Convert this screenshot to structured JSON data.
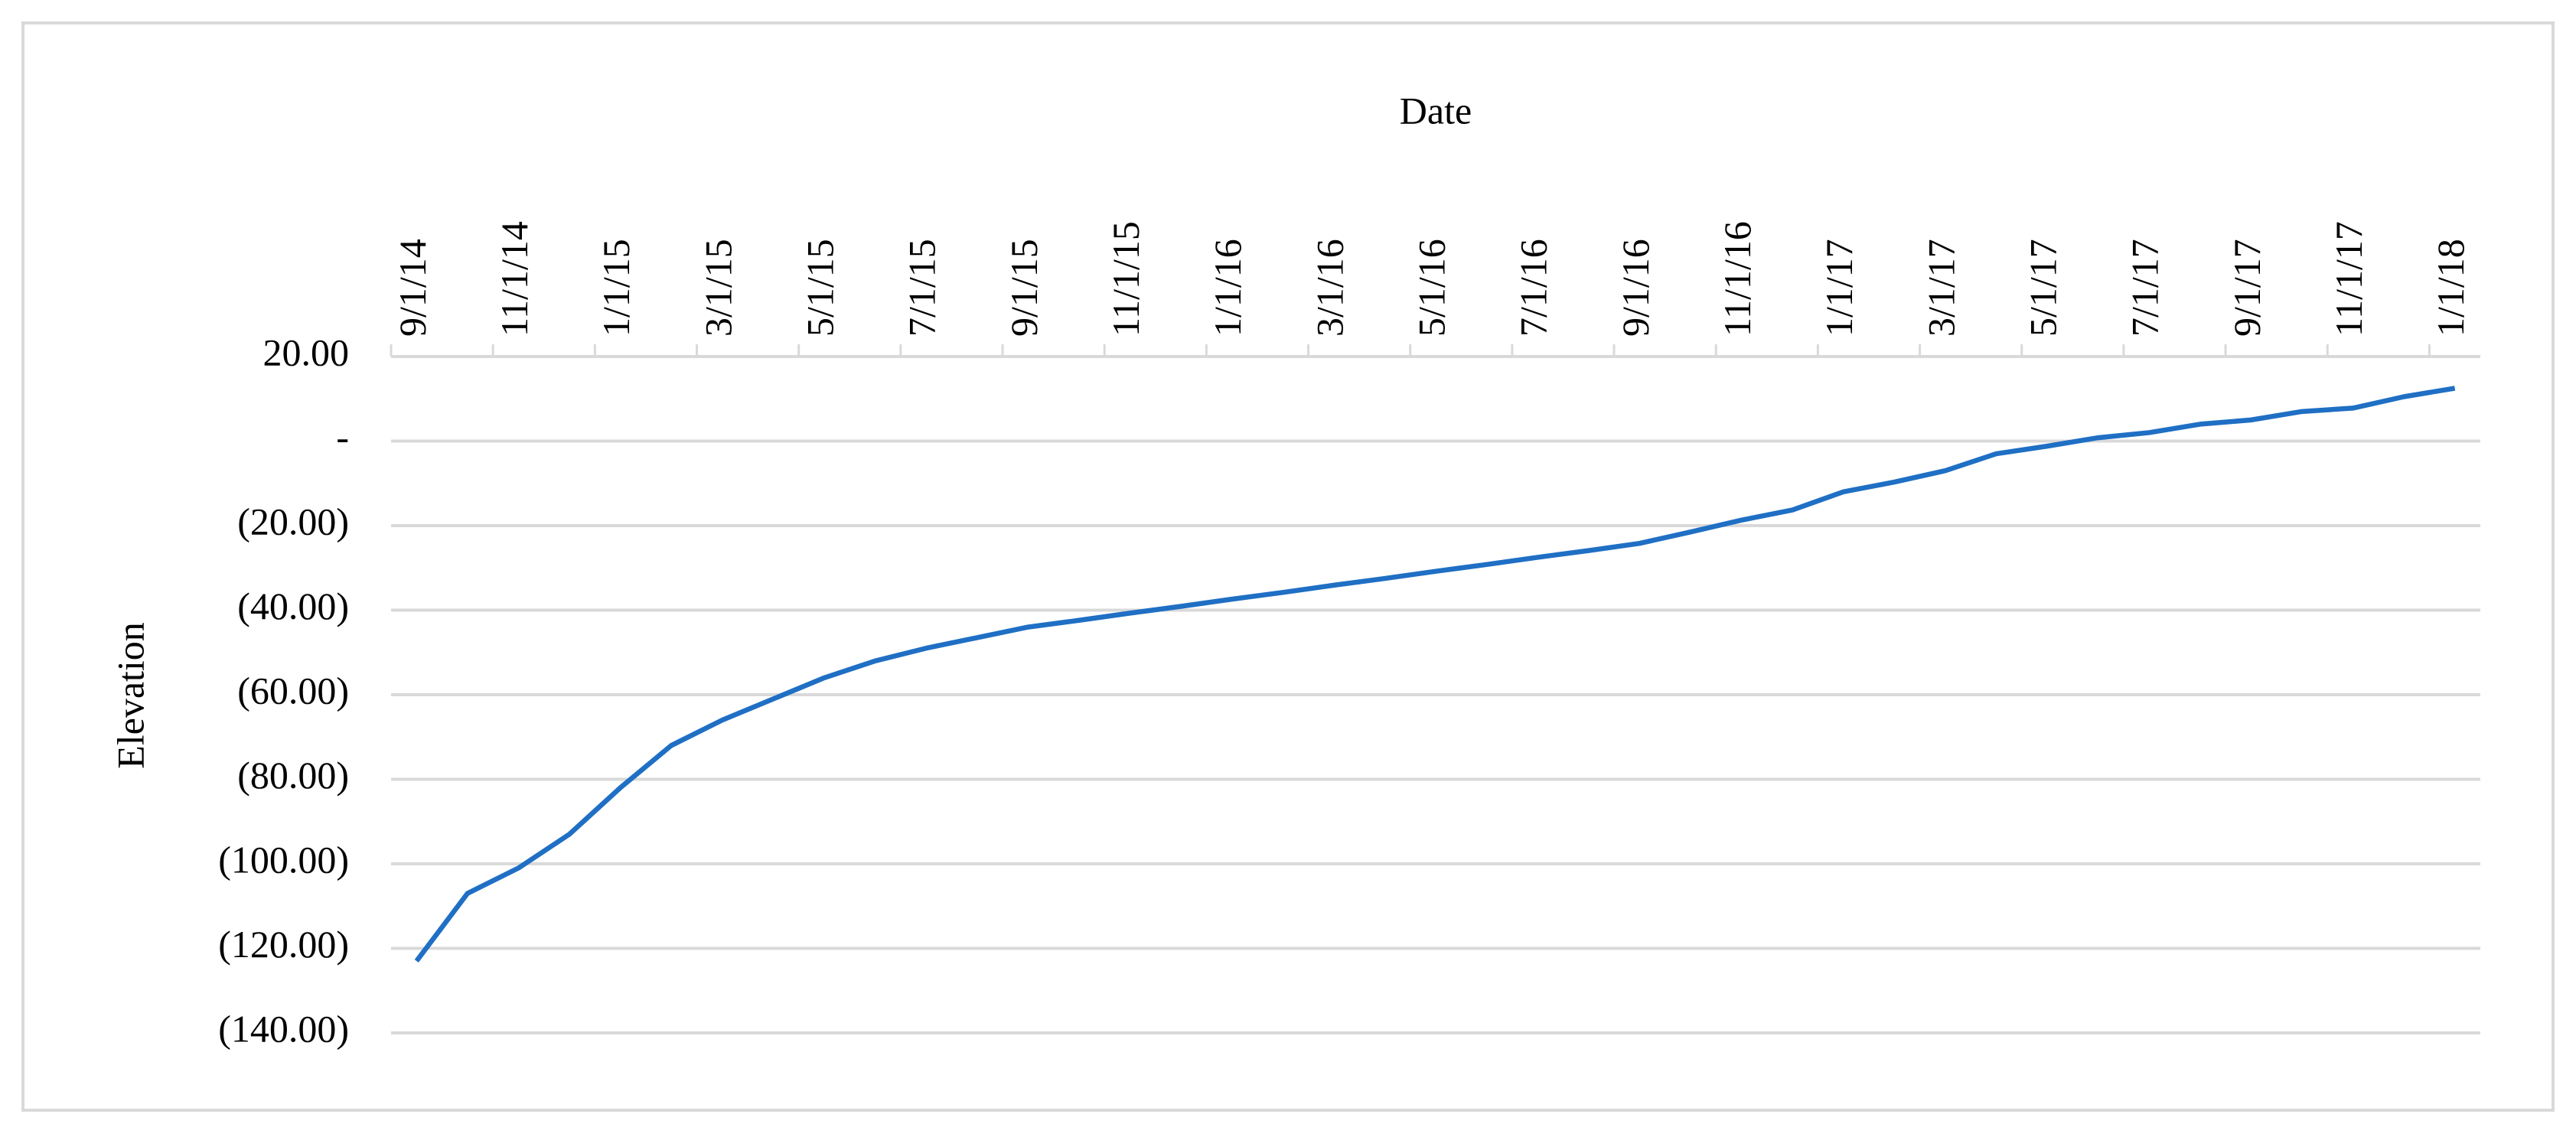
{
  "chart_data": {
    "type": "line",
    "title": "Date",
    "y_label": "Elevation",
    "categories": [
      "9/1/14",
      null,
      "11/1/14",
      null,
      "1/1/15",
      null,
      "3/1/15",
      null,
      "5/1/15",
      null,
      "7/1/15",
      null,
      "9/1/15",
      null,
      "11/1/15",
      null,
      "1/1/16",
      null,
      "3/1/16",
      null,
      "5/1/16",
      null,
      "7/1/16",
      null,
      "9/1/16",
      null,
      "11/1/16",
      null,
      "1/1/17",
      null,
      "3/1/17",
      null,
      "5/1/17",
      null,
      "7/1/17",
      null,
      "9/1/17",
      null,
      "11/1/17",
      null,
      "1/1/18"
    ],
    "values": [
      -123,
      -107,
      -101,
      -93,
      -82,
      -72,
      -66,
      -61,
      -56,
      -52,
      -49,
      -46.5,
      -44,
      -42.4,
      -40.7,
      -39.1,
      -37.4,
      -35.8,
      -34.1,
      -32.5,
      -30.8,
      -29.2,
      -27.5,
      -25.9,
      -24.2,
      -21.5,
      -18.7,
      -16.3,
      -12,
      -9.7,
      -7,
      -3,
      -1.2,
      0.8,
      2,
      4,
      5,
      7,
      7.8,
      10.5,
      12.5
    ],
    "color": "#1f6fc4",
    "ylim": [
      -140,
      20
    ],
    "yticks": [
      {
        "value": 20,
        "label": "20.00"
      },
      {
        "value": 0,
        "label": "-"
      },
      {
        "value": -20,
        "label": "(20.00)"
      },
      {
        "value": -40,
        "label": "(40.00)"
      },
      {
        "value": -60,
        "label": "(60.00)"
      },
      {
        "value": -80,
        "label": "(80.00)"
      },
      {
        "value": -100,
        "label": "(100.00)"
      },
      {
        "value": -120,
        "label": "(120.00)"
      },
      {
        "value": -140,
        "label": "(140.00)"
      }
    ],
    "grid": true
  }
}
